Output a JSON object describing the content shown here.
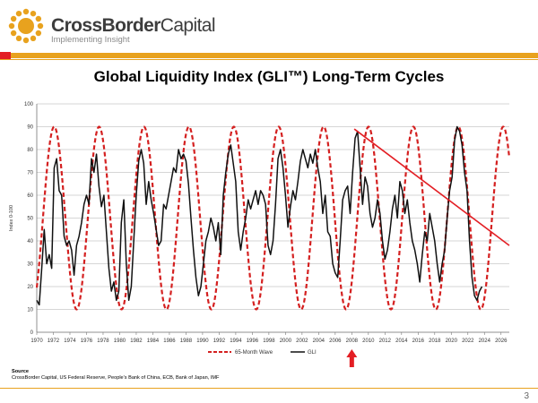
{
  "brand": {
    "name_bold": "CrossBorder",
    "name_light": "Capital",
    "tagline": "Implementing Insight",
    "colors": {
      "orange": "#e8a21e",
      "red": "#e31e24"
    }
  },
  "slide": {
    "title": "Global Liquidity Index (GLI™) Long-Term Cycles",
    "page_number": "3"
  },
  "source": {
    "heading": "Source",
    "text": "CrossBorder Capital, US Federal Reserve, People's Bank of China, ECB, Bank of Japan, IMF"
  },
  "chart_data": {
    "type": "line",
    "title": "Global Liquidity Index (GLI™) Long-Term Cycles",
    "ylabel": "Index 0-100",
    "xlabel": "",
    "xlim": [
      1970,
      2027
    ],
    "ylim": [
      0,
      100
    ],
    "yticks": [
      0,
      10,
      20,
      30,
      40,
      50,
      60,
      70,
      80,
      90,
      100
    ],
    "xticks": [
      1970,
      1972,
      1974,
      1976,
      1978,
      1980,
      1982,
      1984,
      1986,
      1988,
      1990,
      1992,
      1994,
      1996,
      1998,
      2000,
      2002,
      2004,
      2006,
      2008,
      2010,
      2012,
      2014,
      2016,
      2018,
      2020,
      2022,
      2024,
      2026
    ],
    "grid": true,
    "legend": {
      "position": "bottom",
      "entries": [
        "65-Month Wave",
        "GLI"
      ]
    },
    "series": [
      {
        "name": "65-Month Wave",
        "style": "dashed",
        "color": "#d42020",
        "period_years": 5.4167,
        "min": 10,
        "max": 90,
        "peaks_at": [
          1972.1,
          1977.5,
          1982.9,
          1988.3,
          1993.8,
          1999.2,
          2004.6,
          2010.0,
          2015.4,
          2020.8,
          2026.3
        ]
      },
      {
        "name": "GLI",
        "style": "solid",
        "color": "#111111",
        "points": [
          [
            1970.0,
            14
          ],
          [
            1970.3,
            12
          ],
          [
            1970.6,
            28
          ],
          [
            1970.9,
            45
          ],
          [
            1971.2,
            30
          ],
          [
            1971.5,
            34
          ],
          [
            1971.8,
            28
          ],
          [
            1972.1,
            72
          ],
          [
            1972.4,
            76
          ],
          [
            1972.7,
            62
          ],
          [
            1973.0,
            60
          ],
          [
            1973.3,
            42
          ],
          [
            1973.6,
            38
          ],
          [
            1973.9,
            40
          ],
          [
            1974.2,
            36
          ],
          [
            1974.5,
            25
          ],
          [
            1974.8,
            38
          ],
          [
            1975.1,
            42
          ],
          [
            1975.4,
            48
          ],
          [
            1975.7,
            56
          ],
          [
            1976.0,
            60
          ],
          [
            1976.3,
            56
          ],
          [
            1976.6,
            76
          ],
          [
            1976.9,
            70
          ],
          [
            1977.2,
            78
          ],
          [
            1977.5,
            64
          ],
          [
            1977.8,
            55
          ],
          [
            1978.1,
            60
          ],
          [
            1978.4,
            44
          ],
          [
            1978.7,
            28
          ],
          [
            1979.0,
            18
          ],
          [
            1979.3,
            22
          ],
          [
            1979.6,
            14
          ],
          [
            1979.9,
            18
          ],
          [
            1980.2,
            48
          ],
          [
            1980.5,
            58
          ],
          [
            1980.8,
            30
          ],
          [
            1981.1,
            14
          ],
          [
            1981.4,
            20
          ],
          [
            1981.7,
            40
          ],
          [
            1982.0,
            60
          ],
          [
            1982.3,
            75
          ],
          [
            1982.6,
            80
          ],
          [
            1982.9,
            74
          ],
          [
            1983.2,
            56
          ],
          [
            1983.5,
            66
          ],
          [
            1983.8,
            58
          ],
          [
            1984.1,
            52
          ],
          [
            1984.4,
            45
          ],
          [
            1984.7,
            38
          ],
          [
            1985.0,
            40
          ],
          [
            1985.3,
            56
          ],
          [
            1985.6,
            54
          ],
          [
            1985.9,
            60
          ],
          [
            1986.2,
            66
          ],
          [
            1986.5,
            72
          ],
          [
            1986.8,
            70
          ],
          [
            1987.1,
            80
          ],
          [
            1987.4,
            76
          ],
          [
            1987.7,
            78
          ],
          [
            1988.0,
            75
          ],
          [
            1988.3,
            65
          ],
          [
            1988.6,
            50
          ],
          [
            1988.9,
            36
          ],
          [
            1989.2,
            24
          ],
          [
            1989.5,
            16
          ],
          [
            1989.8,
            20
          ],
          [
            1990.1,
            30
          ],
          [
            1990.4,
            40
          ],
          [
            1990.7,
            44
          ],
          [
            1991.0,
            50
          ],
          [
            1991.3,
            46
          ],
          [
            1991.6,
            40
          ],
          [
            1991.9,
            48
          ],
          [
            1992.2,
            34
          ],
          [
            1992.5,
            60
          ],
          [
            1992.8,
            70
          ],
          [
            1993.1,
            78
          ],
          [
            1993.4,
            82
          ],
          [
            1993.7,
            74
          ],
          [
            1994.0,
            66
          ],
          [
            1994.3,
            44
          ],
          [
            1994.6,
            36
          ],
          [
            1994.9,
            44
          ],
          [
            1995.2,
            50
          ],
          [
            1995.5,
            58
          ],
          [
            1995.8,
            54
          ],
          [
            1996.1,
            58
          ],
          [
            1996.4,
            62
          ],
          [
            1996.7,
            56
          ],
          [
            1997.0,
            62
          ],
          [
            1997.3,
            60
          ],
          [
            1997.6,
            56
          ],
          [
            1997.9,
            38
          ],
          [
            1998.2,
            34
          ],
          [
            1998.5,
            40
          ],
          [
            1998.8,
            56
          ],
          [
            1999.1,
            76
          ],
          [
            1999.4,
            80
          ],
          [
            1999.7,
            72
          ],
          [
            2000.0,
            60
          ],
          [
            2000.3,
            46
          ],
          [
            2000.6,
            55
          ],
          [
            2000.9,
            62
          ],
          [
            2001.2,
            58
          ],
          [
            2001.5,
            66
          ],
          [
            2001.8,
            75
          ],
          [
            2002.1,
            80
          ],
          [
            2002.4,
            76
          ],
          [
            2002.7,
            72
          ],
          [
            2003.0,
            78
          ],
          [
            2003.3,
            74
          ],
          [
            2003.6,
            80
          ],
          [
            2003.9,
            72
          ],
          [
            2004.2,
            66
          ],
          [
            2004.5,
            52
          ],
          [
            2004.8,
            60
          ],
          [
            2005.1,
            44
          ],
          [
            2005.4,
            42
          ],
          [
            2005.7,
            30
          ],
          [
            2006.0,
            26
          ],
          [
            2006.3,
            24
          ],
          [
            2006.6,
            40
          ],
          [
            2006.9,
            58
          ],
          [
            2007.2,
            62
          ],
          [
            2007.5,
            64
          ],
          [
            2007.8,
            52
          ],
          [
            2008.1,
            70
          ],
          [
            2008.4,
            85
          ],
          [
            2008.7,
            88
          ],
          [
            2009.0,
            72
          ],
          [
            2009.3,
            56
          ],
          [
            2009.6,
            68
          ],
          [
            2009.9,
            64
          ],
          [
            2010.2,
            52
          ],
          [
            2010.5,
            46
          ],
          [
            2010.8,
            50
          ],
          [
            2011.1,
            58
          ],
          [
            2011.4,
            52
          ],
          [
            2011.7,
            40
          ],
          [
            2012.0,
            32
          ],
          [
            2012.3,
            36
          ],
          [
            2012.6,
            44
          ],
          [
            2012.9,
            54
          ],
          [
            2013.2,
            60
          ],
          [
            2013.5,
            50
          ],
          [
            2013.8,
            66
          ],
          [
            2014.1,
            62
          ],
          [
            2014.4,
            52
          ],
          [
            2014.7,
            58
          ],
          [
            2015.0,
            48
          ],
          [
            2015.3,
            40
          ],
          [
            2015.6,
            36
          ],
          [
            2015.9,
            30
          ],
          [
            2016.2,
            22
          ],
          [
            2016.5,
            34
          ],
          [
            2016.8,
            44
          ],
          [
            2017.1,
            40
          ],
          [
            2017.4,
            52
          ],
          [
            2017.7,
            46
          ],
          [
            2018.0,
            40
          ],
          [
            2018.3,
            30
          ],
          [
            2018.6,
            22
          ],
          [
            2018.9,
            30
          ],
          [
            2019.2,
            36
          ],
          [
            2019.5,
            50
          ],
          [
            2019.8,
            62
          ],
          [
            2020.1,
            68
          ],
          [
            2020.4,
            84
          ],
          [
            2020.7,
            90
          ],
          [
            2021.0,
            88
          ],
          [
            2021.3,
            82
          ],
          [
            2021.6,
            70
          ],
          [
            2021.9,
            62
          ],
          [
            2022.2,
            40
          ],
          [
            2022.5,
            24
          ],
          [
            2022.8,
            16
          ],
          [
            2023.1,
            14
          ],
          [
            2023.4,
            18
          ],
          [
            2023.7,
            20
          ]
        ]
      },
      {
        "name": "Trend line",
        "style": "solid",
        "color": "#e31e24",
        "points": [
          [
            2008.3,
            89
          ],
          [
            2027.0,
            38
          ]
        ]
      }
    ],
    "annotations": [
      {
        "type": "arrow",
        "x": 2008.0,
        "direction": "up",
        "color": "#e31e24"
      }
    ]
  }
}
